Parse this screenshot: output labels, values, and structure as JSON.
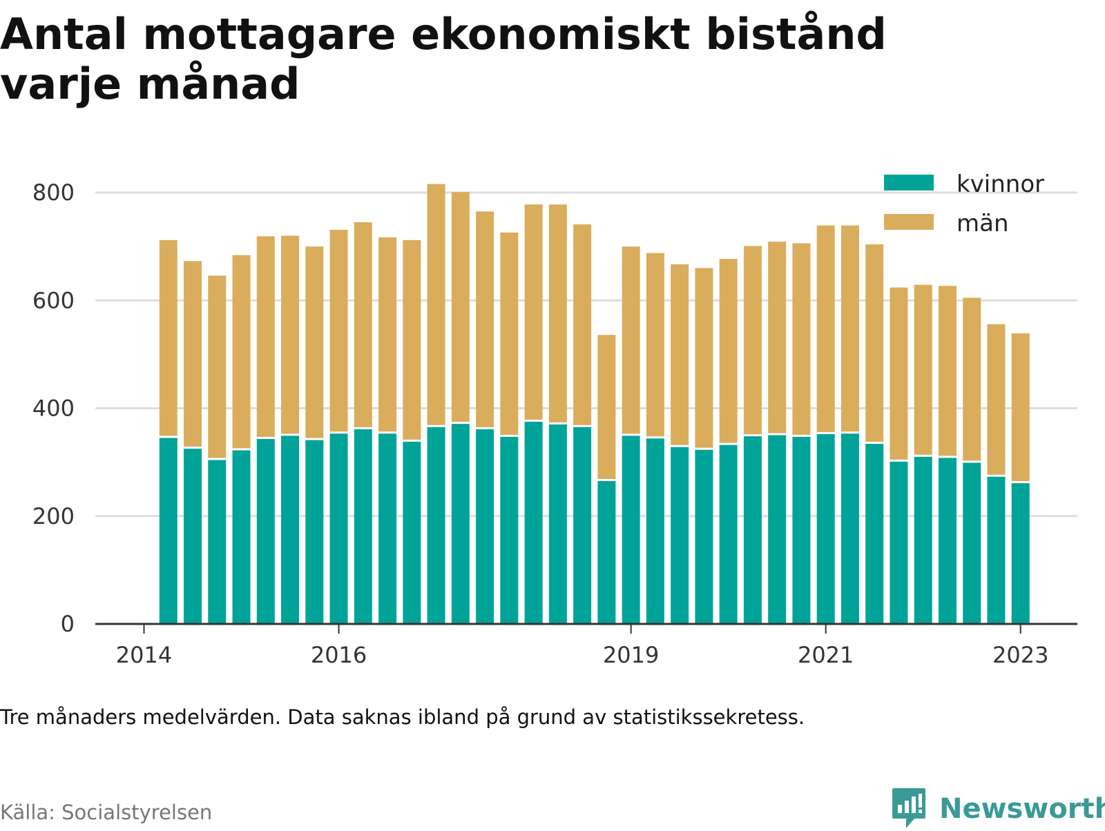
{
  "title": "Antal mottagare ekonomiskt bistånd varje månad",
  "note": "Tre månaders medelvärden. Data saknas ibland på grund av statistikssekretess.",
  "source": "Källa: Socialstyrelsen",
  "brand": {
    "name": "Newsworthy",
    "color": "#3a9a96"
  },
  "colors": {
    "kvinnor": "#00a398",
    "man": "#d9ad5c",
    "grid": "#dddddd",
    "axis": "#333333"
  },
  "legend": [
    "kvinnor",
    "män"
  ],
  "chart_data": {
    "type": "bar",
    "stacked": true,
    "ylim": [
      0,
      850
    ],
    "yticks": [
      0,
      200,
      400,
      600,
      800
    ],
    "xticks": [
      {
        "label": "2014",
        "date": "2014-01"
      },
      {
        "label": "2016",
        "date": "2016-01"
      },
      {
        "label": "2019",
        "date": "2019-01"
      },
      {
        "label": "2021",
        "date": "2021-01"
      },
      {
        "label": "2023",
        "date": "2023-01"
      }
    ],
    "x_range": [
      "2013-07",
      "2023-08"
    ],
    "categories": [
      "2014-04",
      "2014-07",
      "2014-10",
      "2015-01",
      "2015-04",
      "2015-07",
      "2015-10",
      "2016-01",
      "2016-04",
      "2016-07",
      "2016-10",
      "2017-01",
      "2017-04",
      "2017-07",
      "2017-10",
      "2018-01",
      "2018-04",
      "2018-07",
      "2018-10",
      "2019-01",
      "2019-04",
      "2019-07",
      "2019-10",
      "2020-01",
      "2020-04",
      "2020-07",
      "2020-10",
      "2021-01",
      "2021-04",
      "2021-07",
      "2021-10",
      "2022-01",
      "2022-04",
      "2022-07",
      "2022-10",
      "2023-01",
      "2023-04"
    ],
    "series": [
      {
        "name": "kvinnor",
        "values": [
          345,
          325,
          304,
          322,
          343,
          349,
          341,
          353,
          361,
          353,
          338,
          365,
          371,
          361,
          347,
          375,
          370,
          365,
          265,
          349,
          344,
          328,
          323,
          332,
          348,
          350,
          347,
          352,
          353,
          334,
          301,
          310,
          308,
          299,
          273,
          261,
          0
        ]
      },
      {
        "name": "män",
        "values": [
          367,
          348,
          342,
          362,
          376,
          371,
          359,
          378,
          384,
          364,
          374,
          451,
          430,
          404,
          379,
          403,
          408,
          376,
          271,
          351,
          344,
          339,
          337,
          345,
          353,
          359,
          359,
          387,
          386,
          370,
          323,
          319,
          319,
          306,
          283,
          278,
          0
        ]
      }
    ]
  }
}
